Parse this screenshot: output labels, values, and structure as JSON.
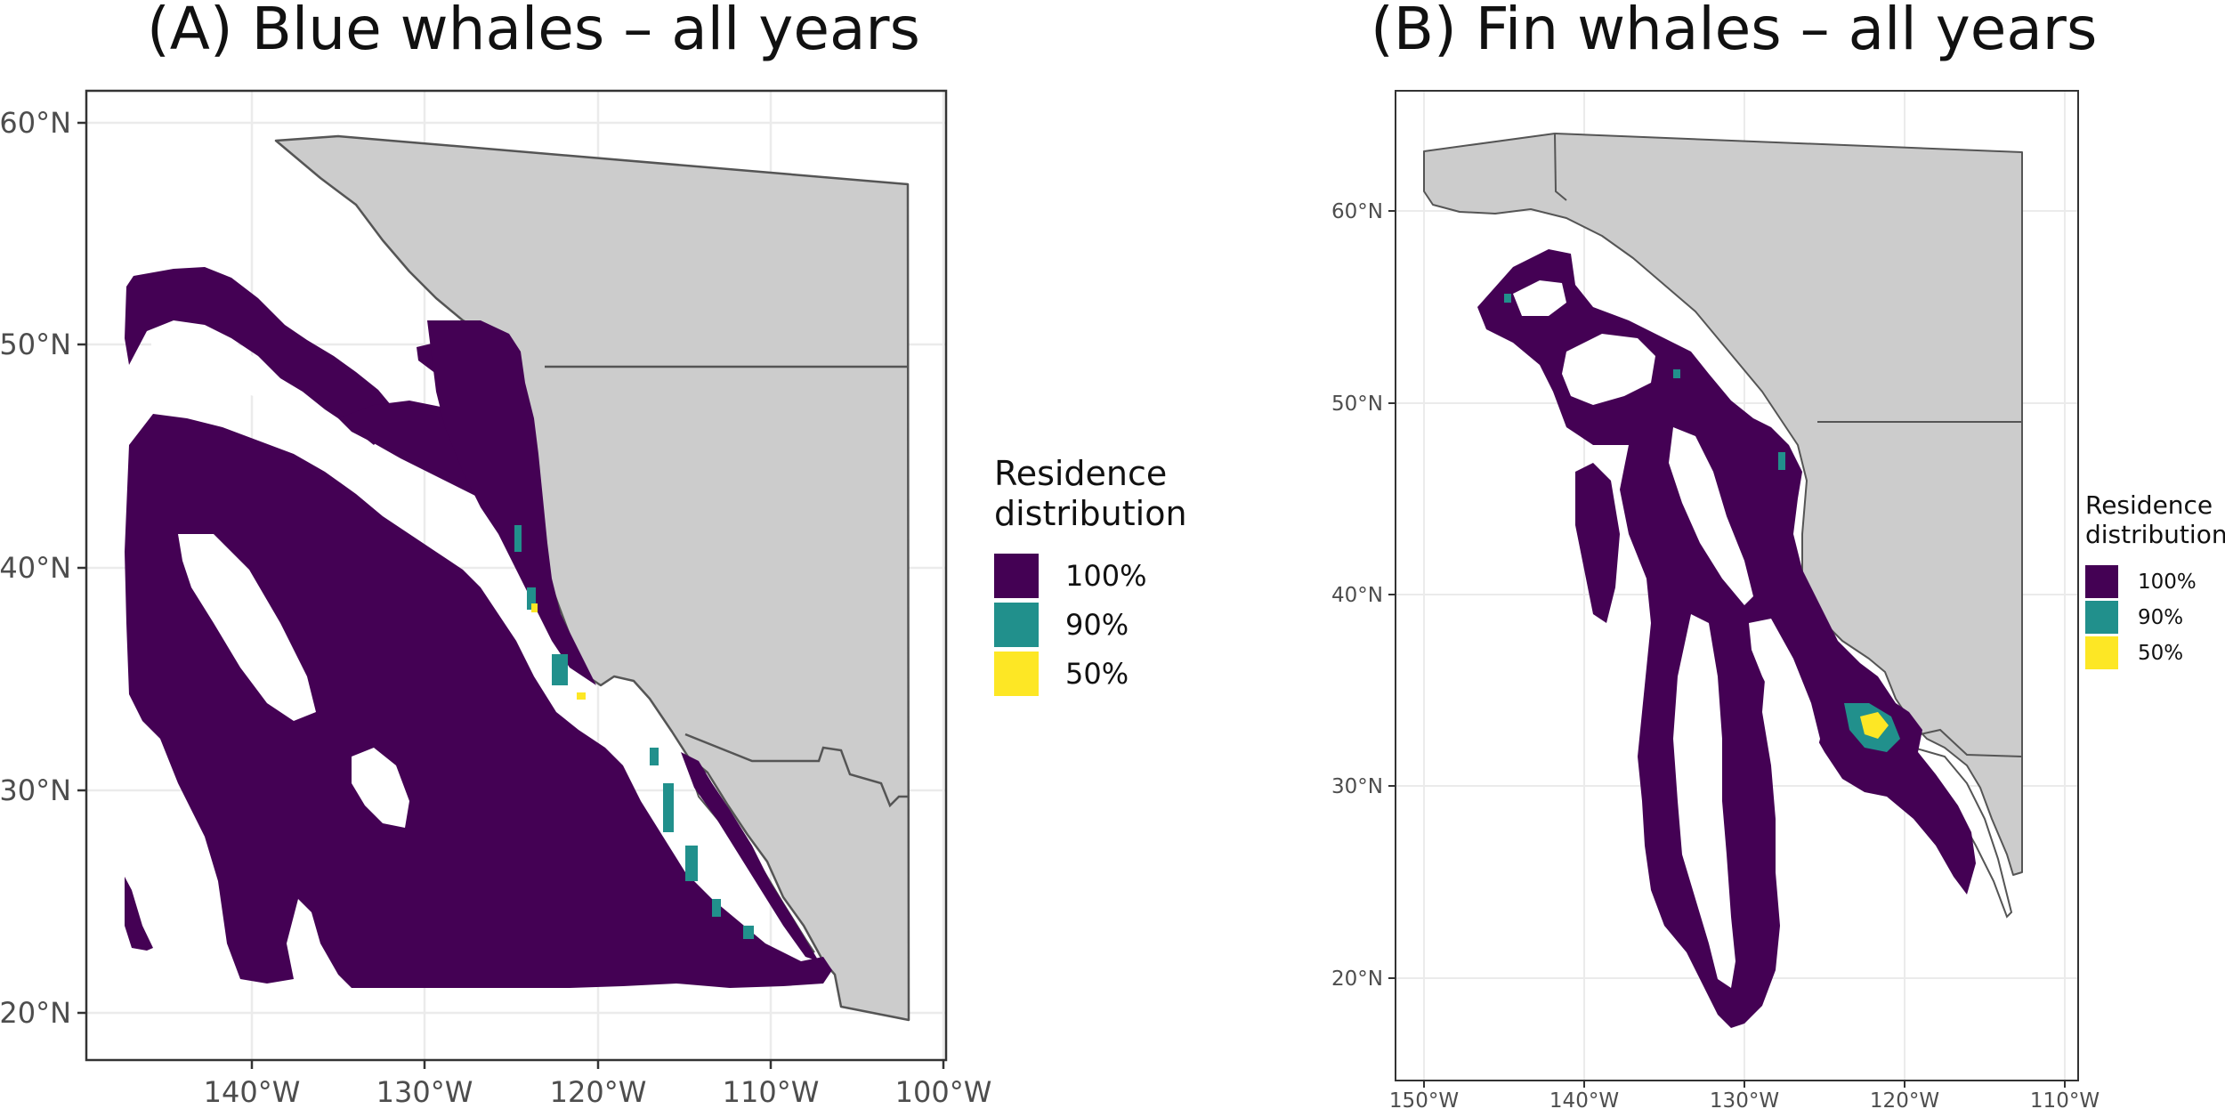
{
  "panels": [
    {
      "title": "(A) Blue whales – all years",
      "x_ticks": [
        "140°W",
        "130°W",
        "120°W",
        "110°W",
        "100°W"
      ],
      "y_ticks": [
        "60°N",
        "50°N",
        "40°N",
        "30°N",
        "20°N"
      ]
    },
    {
      "title": "(B) Fin whales – all years",
      "x_ticks": [
        "150°W",
        "140°W",
        "130°W",
        "120°W",
        "110°W"
      ],
      "y_ticks": [
        "60°N",
        "50°N",
        "40°N",
        "30°N",
        "20°N"
      ]
    }
  ],
  "legend": {
    "title_line1": "Residence",
    "title_line2": "distribution",
    "items": [
      {
        "label": "100%",
        "color": "#440154"
      },
      {
        "label": "90%",
        "color": "#21908C"
      },
      {
        "label": "50%",
        "color": "#FDE725"
      }
    ]
  },
  "colors": {
    "land": "#cccccc",
    "coast": "#555555",
    "grid": "#ebebeb",
    "panel_border": "#333333"
  }
}
